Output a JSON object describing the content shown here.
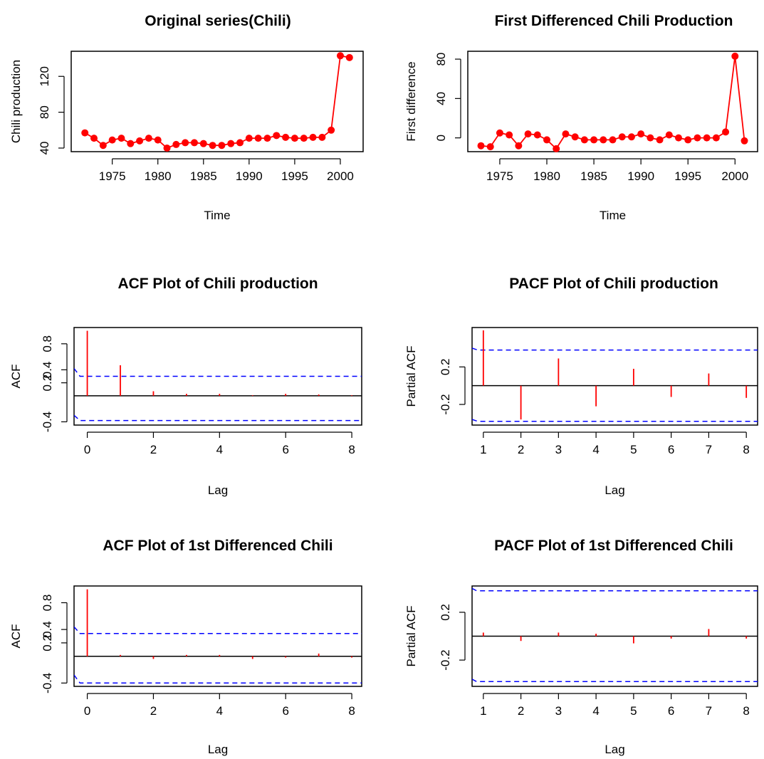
{
  "chart_data": [
    {
      "type": "line",
      "title": "Original series(Chili)",
      "xlabel": "Time",
      "ylabel": "Chili production",
      "xlim": [
        1970.5,
        2002.5
      ],
      "ylim": [
        36,
        148
      ],
      "xticks": [
        1975,
        1980,
        1985,
        1990,
        1995,
        2000
      ],
      "yticks": [
        40,
        80,
        120
      ],
      "grid": false,
      "series": [
        {
          "color": "#ff0000",
          "marker": "filled-circle",
          "x": [
            1972,
            1973,
            1974,
            1975,
            1976,
            1977,
            1978,
            1979,
            1980,
            1981,
            1982,
            1983,
            1984,
            1985,
            1986,
            1987,
            1988,
            1989,
            1990,
            1991,
            1992,
            1993,
            1994,
            1995,
            1996,
            1997,
            1998,
            1999,
            2000,
            2001
          ],
          "y": [
            57,
            51,
            43,
            49,
            51,
            45,
            48,
            51,
            49,
            40,
            44,
            46,
            46,
            45,
            43,
            43,
            45,
            46,
            51,
            51,
            51,
            54,
            52,
            51,
            51,
            52,
            52,
            60,
            143,
            141
          ]
        }
      ]
    },
    {
      "type": "line",
      "title": "First Differenced Chili Production",
      "xlabel": "Time",
      "ylabel": "First difference",
      "xlim": [
        1971.6,
        2002.4
      ],
      "ylim": [
        -14,
        88
      ],
      "xticks": [
        1975,
        1980,
        1985,
        1990,
        1995,
        2000
      ],
      "yticks": [
        0,
        40,
        80
      ],
      "grid": false,
      "series": [
        {
          "color": "#ff0000",
          "marker": "filled-circle",
          "x": [
            1973,
            1974,
            1975,
            1976,
            1977,
            1978,
            1979,
            1980,
            1981,
            1982,
            1983,
            1984,
            1985,
            1986,
            1987,
            1988,
            1989,
            1990,
            1991,
            1992,
            1993,
            1994,
            1995,
            1996,
            1997,
            1998,
            1999,
            2000,
            2001
          ],
          "y": [
            -8,
            -9,
            5,
            3,
            -8,
            4,
            3,
            -2,
            -11,
            4,
            1,
            -2,
            -2,
            -2,
            -2,
            1,
            1,
            4,
            0,
            -2,
            3,
            0,
            -2,
            0,
            0,
            0,
            6,
            83,
            -3
          ]
        }
      ]
    },
    {
      "type": "acf",
      "title": "ACF Plot of Chili production",
      "xlabel": "Lag",
      "ylabel": "ACF",
      "xlim": [
        -0.4,
        8.3
      ],
      "ylim": [
        -0.45,
        1.05
      ],
      "xticks": [
        0,
        2,
        4,
        6,
        8
      ],
      "yticks": [
        -0.4,
        0.2,
        0.4,
        0.8
      ],
      "ytick_labels": [
        "-0.4",
        "0.2",
        "0.4",
        "0.8"
      ],
      "lags": [
        0,
        1,
        2,
        3,
        4,
        5,
        6,
        7,
        8
      ],
      "values": [
        1.0,
        0.47,
        0.07,
        0.03,
        0.03,
        0.01,
        0.03,
        0.02,
        0.01
      ],
      "bar_color": "#ff0000",
      "ci_color": "#0000ff",
      "ci_upper": [
        [
          -0.4,
          0.42
        ],
        [
          -0.22,
          0.3
        ],
        [
          8.3,
          0.3
        ]
      ],
      "ci_lower": [
        [
          -0.4,
          -0.3
        ],
        [
          -0.22,
          -0.38
        ],
        [
          8.3,
          -0.38
        ]
      ]
    },
    {
      "type": "pacf",
      "title": "PACF Plot of Chili production",
      "xlabel": "Lag",
      "ylabel": "Partial ACF",
      "xlim": [
        0.7,
        8.3
      ],
      "ylim": [
        -0.42,
        0.62
      ],
      "xticks": [
        1,
        2,
        3,
        4,
        5,
        6,
        7,
        8
      ],
      "yticks": [
        -0.2,
        0.2
      ],
      "ytick_labels": [
        "-0.2",
        "0.2"
      ],
      "lags": [
        1,
        2,
        3,
        4,
        5,
        6,
        7,
        8
      ],
      "values": [
        0.59,
        -0.36,
        0.29,
        -0.22,
        0.18,
        -0.12,
        0.13,
        -0.13
      ],
      "bar_color": "#ff0000",
      "ci_color": "#0000ff",
      "ci_upper": [
        [
          0.7,
          0.4
        ],
        [
          0.85,
          0.38
        ],
        [
          8.3,
          0.38
        ]
      ],
      "ci_lower": [
        [
          0.7,
          -0.36
        ],
        [
          0.85,
          -0.38
        ],
        [
          8.3,
          -0.38
        ]
      ]
    },
    {
      "type": "acf",
      "title": "ACF Plot of 1st Differenced Chili",
      "xlabel": "Lag",
      "ylabel": "ACF",
      "xlim": [
        -0.4,
        8.3
      ],
      "ylim": [
        -0.45,
        1.05
      ],
      "xticks": [
        0,
        2,
        4,
        6,
        8
      ],
      "yticks": [
        -0.4,
        0.2,
        0.4,
        0.8
      ],
      "ytick_labels": [
        "-0.4",
        "0.2",
        "0.4",
        "0.8"
      ],
      "lags": [
        0,
        1,
        2,
        3,
        4,
        5,
        6,
        7,
        8
      ],
      "values": [
        1.0,
        0.02,
        -0.04,
        0.02,
        0.02,
        -0.04,
        -0.02,
        0.04,
        -0.02
      ],
      "bar_color": "#ff0000",
      "ci_color": "#0000ff",
      "ci_upper": [
        [
          -0.4,
          0.44
        ],
        [
          -0.22,
          0.34
        ],
        [
          8.3,
          0.34
        ]
      ],
      "ci_lower": [
        [
          -0.4,
          -0.28
        ],
        [
          -0.22,
          -0.4
        ],
        [
          8.3,
          -0.4
        ]
      ]
    },
    {
      "type": "pacf",
      "title": "PACF Plot of 1st Differenced Chili",
      "xlabel": "Lag",
      "ylabel": "Partial ACF",
      "xlim": [
        0.7,
        8.3
      ],
      "ylim": [
        -0.42,
        0.42
      ],
      "xticks": [
        1,
        2,
        3,
        4,
        5,
        6,
        7,
        8
      ],
      "yticks": [
        -0.2,
        0.2
      ],
      "ytick_labels": [
        "-0.2",
        "0.2"
      ],
      "lags": [
        1,
        2,
        3,
        4,
        5,
        6,
        7,
        8
      ],
      "values": [
        0.03,
        -0.04,
        0.03,
        0.02,
        -0.06,
        -0.02,
        0.06,
        -0.02
      ],
      "bar_color": "#ff0000",
      "ci_color": "#0000ff",
      "ci_upper": [
        [
          0.7,
          0.4
        ],
        [
          0.82,
          0.38
        ],
        [
          8.3,
          0.38
        ]
      ],
      "ci_lower": [
        [
          0.7,
          -0.36
        ],
        [
          0.82,
          -0.38
        ],
        [
          8.3,
          -0.38
        ]
      ]
    }
  ]
}
